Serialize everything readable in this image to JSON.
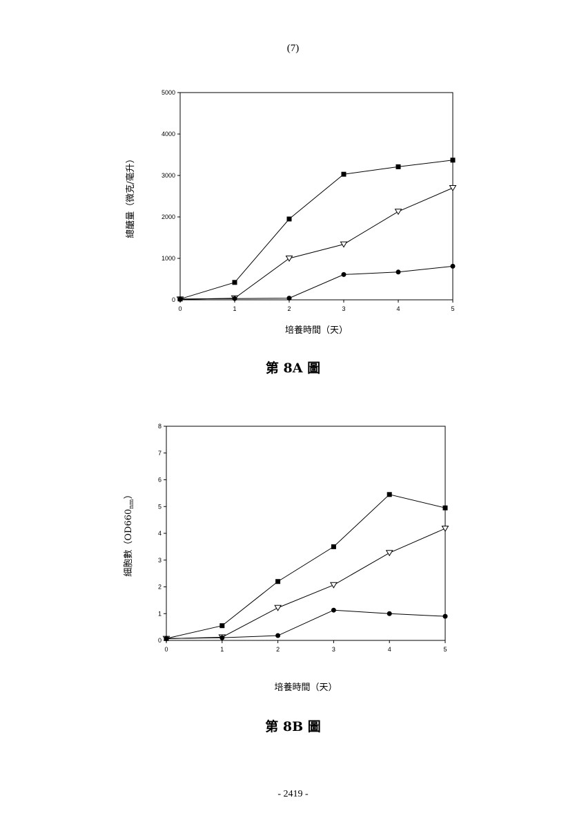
{
  "page": {
    "header_number": "(7)",
    "footer_number": "- 2419 -"
  },
  "chart_data": [
    {
      "type": "line",
      "caption": "第 8A 圖",
      "xlabel": "培養時間（天）",
      "ylabel": "總醣量（微克/毫升）",
      "x": [
        0,
        1,
        2,
        3,
        4,
        5
      ],
      "xlim": [
        0,
        5
      ],
      "ylim": [
        0,
        5000
      ],
      "xticks": [
        0,
        1,
        2,
        3,
        4,
        5
      ],
      "yticks": [
        0,
        1000,
        2000,
        3000,
        4000,
        5000
      ],
      "grid": false,
      "series": [
        {
          "marker": "filled-square",
          "values": [
            20,
            420,
            1950,
            3030,
            3210,
            3370
          ]
        },
        {
          "marker": "open-triangle-down",
          "values": [
            10,
            40,
            1000,
            1340,
            2130,
            2700
          ]
        },
        {
          "marker": "filled-circle",
          "values": [
            20,
            30,
            40,
            610,
            670,
            810
          ]
        }
      ]
    },
    {
      "type": "line",
      "caption": "第 8B 圖",
      "xlabel": "培養時間（天）",
      "ylabel": "細胞數（OD660",
      "ylabel_sub": "nm",
      "ylabel_end": "）",
      "x": [
        0,
        1,
        2,
        3,
        4,
        5
      ],
      "xlim": [
        0,
        5
      ],
      "ylim": [
        0,
        8
      ],
      "xticks": [
        0,
        1,
        2,
        3,
        4,
        5
      ],
      "yticks": [
        0,
        1,
        2,
        3,
        4,
        5,
        6,
        7,
        8
      ],
      "grid": false,
      "series": [
        {
          "marker": "filled-square",
          "values": [
            0.07,
            0.55,
            2.2,
            3.5,
            5.45,
            4.95
          ]
        },
        {
          "marker": "open-triangle-down",
          "values": [
            0.06,
            0.12,
            1.22,
            2.07,
            3.27,
            4.18
          ]
        },
        {
          "marker": "filled-circle",
          "values": [
            0.07,
            0.1,
            0.18,
            1.13,
            1.0,
            0.9
          ]
        }
      ]
    }
  ]
}
